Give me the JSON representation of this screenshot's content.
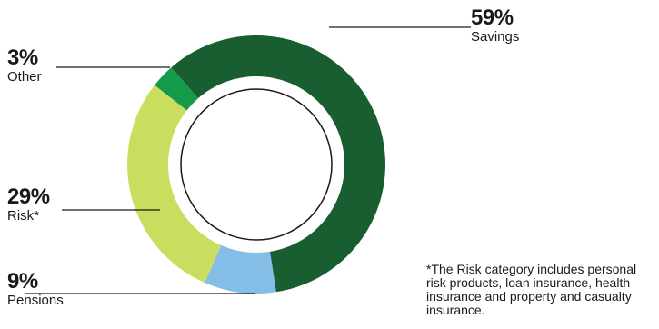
{
  "chart_data": {
    "type": "pie",
    "style": "donut",
    "slices": [
      {
        "key": "savings",
        "name": "Savings",
        "label": "59%",
        "value": 59,
        "color": "#195e30"
      },
      {
        "key": "pensions",
        "name": "Pensions",
        "label": "9%",
        "value": 9,
        "color": "#84bde6"
      },
      {
        "key": "risk",
        "name": "Risk*",
        "label": "29%",
        "value": 29,
        "color": "#cbdd5e"
      },
      {
        "key": "other",
        "name": "Other",
        "label": "3%",
        "value": 3,
        "color": "#149a48"
      }
    ],
    "footnote": "*The Risk category includes personal risk products, loan insurance, health insurance and property and casualty insurance."
  }
}
